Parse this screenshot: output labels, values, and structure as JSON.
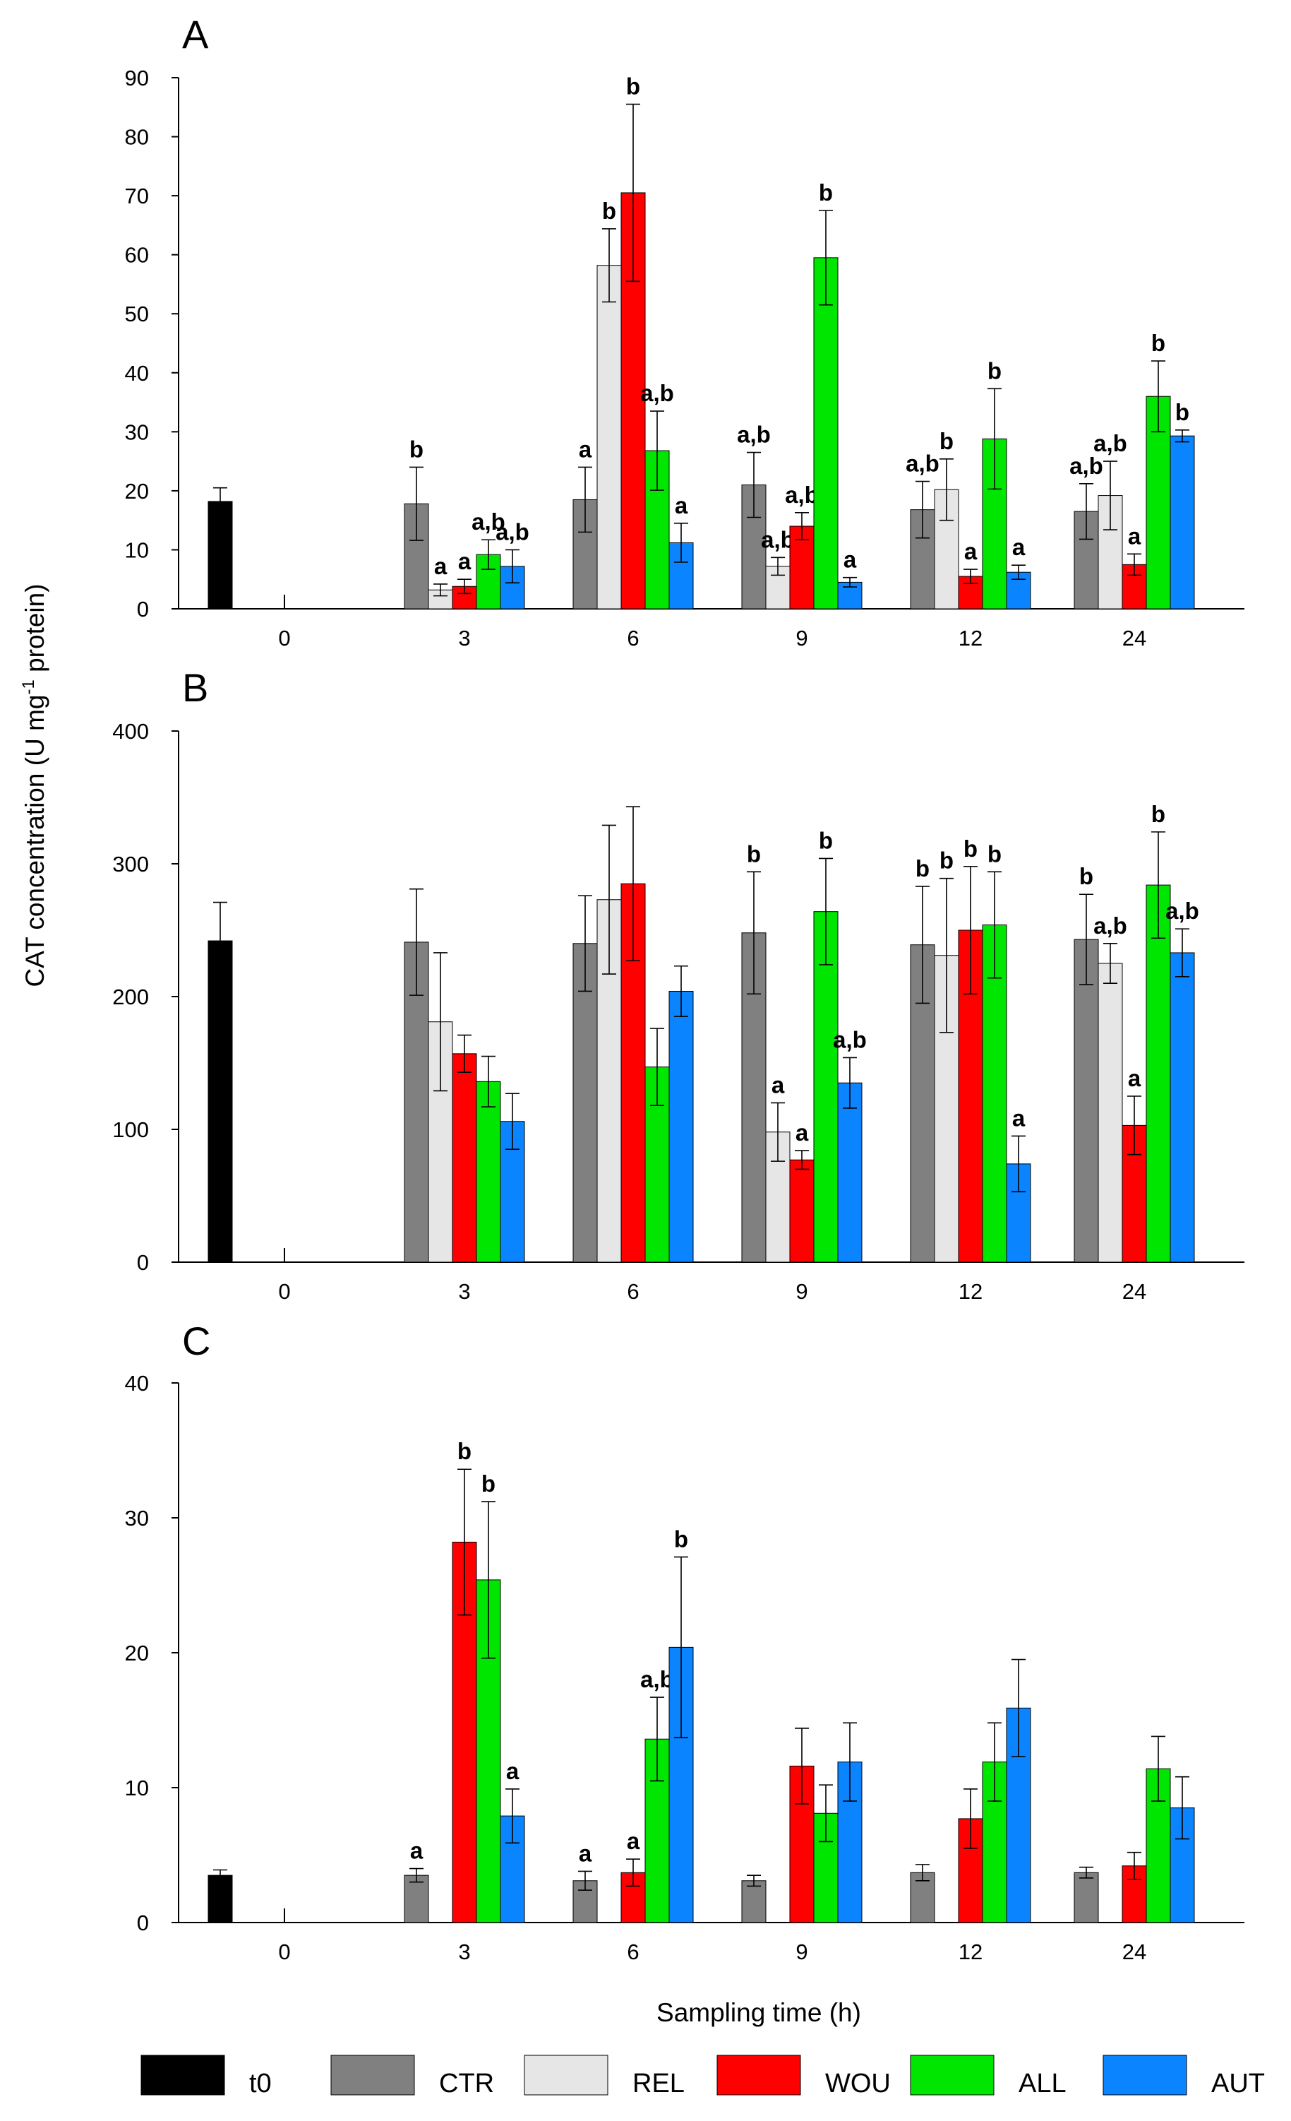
{
  "figure": {
    "ylabel_main": "CAT concentration (U mg",
    "ylabel_sup": "-1",
    "ylabel_rest": " protein)",
    "xlabel": "Sampling time (h)"
  },
  "legend": [
    {
      "key": "t0",
      "label": "t0",
      "color": "#000000"
    },
    {
      "key": "CTR",
      "label": "CTR",
      "color": "#808080"
    },
    {
      "key": "REL",
      "label": "REL",
      "color": "#e6e6e6"
    },
    {
      "key": "WOU",
      "label": "WOU",
      "color": "#ff0000"
    },
    {
      "key": "ALL",
      "label": "ALL",
      "color": "#00e600"
    },
    {
      "key": "AUT",
      "label": "AUT",
      "color": "#0a84ff"
    }
  ],
  "chart_data": [
    {
      "panel": "A",
      "type": "bar",
      "categories": [
        "0",
        "3",
        "6",
        "9",
        "12",
        "24"
      ],
      "ylim": [
        0,
        90
      ],
      "yticks": [
        0,
        10,
        20,
        30,
        40,
        50,
        60,
        70,
        80,
        90
      ],
      "series": [
        {
          "name": "t0",
          "values": [
            18.2,
            null,
            null,
            null,
            null,
            null
          ],
          "errors": [
            2.3,
            null,
            null,
            null,
            null,
            null
          ],
          "labels": [
            "",
            "",
            "",
            "",
            "",
            ""
          ]
        },
        {
          "name": "CTR",
          "values": [
            null,
            17.8,
            18.5,
            21.0,
            16.8,
            16.5
          ],
          "errors": [
            null,
            6.2,
            5.5,
            5.5,
            4.8,
            4.7
          ],
          "labels": [
            "",
            "b",
            "a",
            "a,b",
            "a,b",
            "a,b"
          ]
        },
        {
          "name": "REL",
          "values": [
            null,
            3.2,
            58.2,
            7.2,
            20.2,
            19.2
          ],
          "errors": [
            null,
            1.0,
            6.2,
            1.5,
            5.2,
            5.8
          ],
          "labels": [
            "",
            "a",
            "b",
            "a,b",
            "b",
            "a,b"
          ]
        },
        {
          "name": "WOU",
          "values": [
            null,
            3.8,
            70.5,
            14.0,
            5.5,
            7.5
          ],
          "errors": [
            null,
            1.2,
            15.0,
            2.3,
            1.2,
            1.8
          ],
          "labels": [
            "",
            "a",
            "b",
            "a,b",
            "a",
            "a"
          ]
        },
        {
          "name": "ALL",
          "values": [
            null,
            9.2,
            26.8,
            59.5,
            28.8,
            36.0
          ],
          "errors": [
            null,
            2.5,
            6.7,
            8.0,
            8.5,
            6.0
          ],
          "labels": [
            "",
            "a,b",
            "a,b",
            "b",
            "b",
            "b"
          ]
        },
        {
          "name": "AUT",
          "values": [
            null,
            7.2,
            11.2,
            4.5,
            6.2,
            29.3
          ],
          "errors": [
            null,
            2.8,
            3.3,
            0.8,
            1.2,
            1.0
          ],
          "labels": [
            "",
            "a,b",
            "a",
            "a",
            "a",
            "b"
          ]
        }
      ]
    },
    {
      "panel": "B",
      "type": "bar",
      "categories": [
        "0",
        "3",
        "6",
        "9",
        "12",
        "24"
      ],
      "ylim": [
        0,
        400
      ],
      "yticks": [
        0,
        100,
        200,
        300,
        400
      ],
      "series": [
        {
          "name": "t0",
          "values": [
            242,
            null,
            null,
            null,
            null,
            null
          ],
          "errors": [
            29,
            null,
            null,
            null,
            null,
            null
          ],
          "labels": [
            "",
            "",
            "",
            "",
            "",
            ""
          ]
        },
        {
          "name": "CTR",
          "values": [
            null,
            241,
            240,
            248,
            239,
            243
          ],
          "errors": [
            null,
            40,
            36,
            46,
            44,
            34
          ],
          "labels": [
            "",
            "",
            "",
            "b",
            "b",
            "b"
          ]
        },
        {
          "name": "REL",
          "values": [
            null,
            181,
            273,
            98,
            231,
            225
          ],
          "errors": [
            null,
            52,
            56,
            22,
            58,
            15
          ],
          "labels": [
            "",
            "",
            "",
            "a",
            "b",
            "a,b"
          ]
        },
        {
          "name": "WOU",
          "values": [
            null,
            157,
            285,
            77,
            250,
            103
          ],
          "errors": [
            null,
            14,
            58,
            7,
            48,
            22
          ],
          "labels": [
            "",
            "",
            "",
            "a",
            "b",
            "a"
          ]
        },
        {
          "name": "ALL",
          "values": [
            null,
            136,
            147,
            264,
            254,
            284
          ],
          "errors": [
            null,
            19,
            29,
            40,
            40,
            40
          ],
          "labels": [
            "",
            "",
            "",
            "b",
            "b",
            "b"
          ]
        },
        {
          "name": "AUT",
          "values": [
            null,
            106,
            204,
            135,
            74,
            233
          ],
          "errors": [
            null,
            21,
            19,
            19,
            21,
            18
          ],
          "labels": [
            "",
            "",
            "",
            "a,b",
            "a",
            "a,b"
          ]
        }
      ]
    },
    {
      "panel": "C",
      "type": "bar",
      "categories": [
        "0",
        "3",
        "6",
        "9",
        "12",
        "24"
      ],
      "ylim": [
        0,
        40
      ],
      "yticks": [
        0,
        10,
        20,
        30,
        40
      ],
      "series": [
        {
          "name": "t0",
          "values": [
            3.5,
            null,
            null,
            null,
            null,
            null
          ],
          "errors": [
            0.4,
            null,
            null,
            null,
            null,
            null
          ],
          "labels": [
            "",
            "",
            "",
            "",
            "",
            ""
          ]
        },
        {
          "name": "CTR",
          "values": [
            null,
            3.5,
            3.1,
            3.1,
            3.7,
            3.7
          ],
          "errors": [
            null,
            0.5,
            0.7,
            0.4,
            0.6,
            0.4
          ],
          "labels": [
            "",
            "a",
            "a",
            "",
            "",
            ""
          ]
        },
        {
          "name": "REL",
          "values": [
            null,
            null,
            null,
            null,
            null,
            null
          ],
          "errors": [
            null,
            null,
            null,
            null,
            null,
            null
          ],
          "labels": [
            "",
            "",
            "",
            "",
            "",
            ""
          ]
        },
        {
          "name": "WOU",
          "values": [
            null,
            28.2,
            3.7,
            11.6,
            7.7,
            4.2
          ],
          "errors": [
            null,
            5.4,
            1.0,
            2.8,
            2.2,
            1.0
          ],
          "labels": [
            "",
            "b",
            "a",
            "",
            "",
            ""
          ]
        },
        {
          "name": "ALL",
          "values": [
            null,
            25.4,
            13.6,
            8.1,
            11.9,
            11.4
          ],
          "errors": [
            null,
            5.8,
            3.1,
            2.1,
            2.9,
            2.4
          ],
          "labels": [
            "",
            "b",
            "a,b",
            "",
            "",
            ""
          ]
        },
        {
          "name": "AUT",
          "values": [
            null,
            7.9,
            20.4,
            11.9,
            15.9,
            8.5
          ],
          "errors": [
            null,
            2.0,
            6.7,
            2.9,
            3.6,
            2.3
          ],
          "labels": [
            "",
            "a",
            "b",
            "",
            "",
            ""
          ]
        }
      ]
    }
  ]
}
